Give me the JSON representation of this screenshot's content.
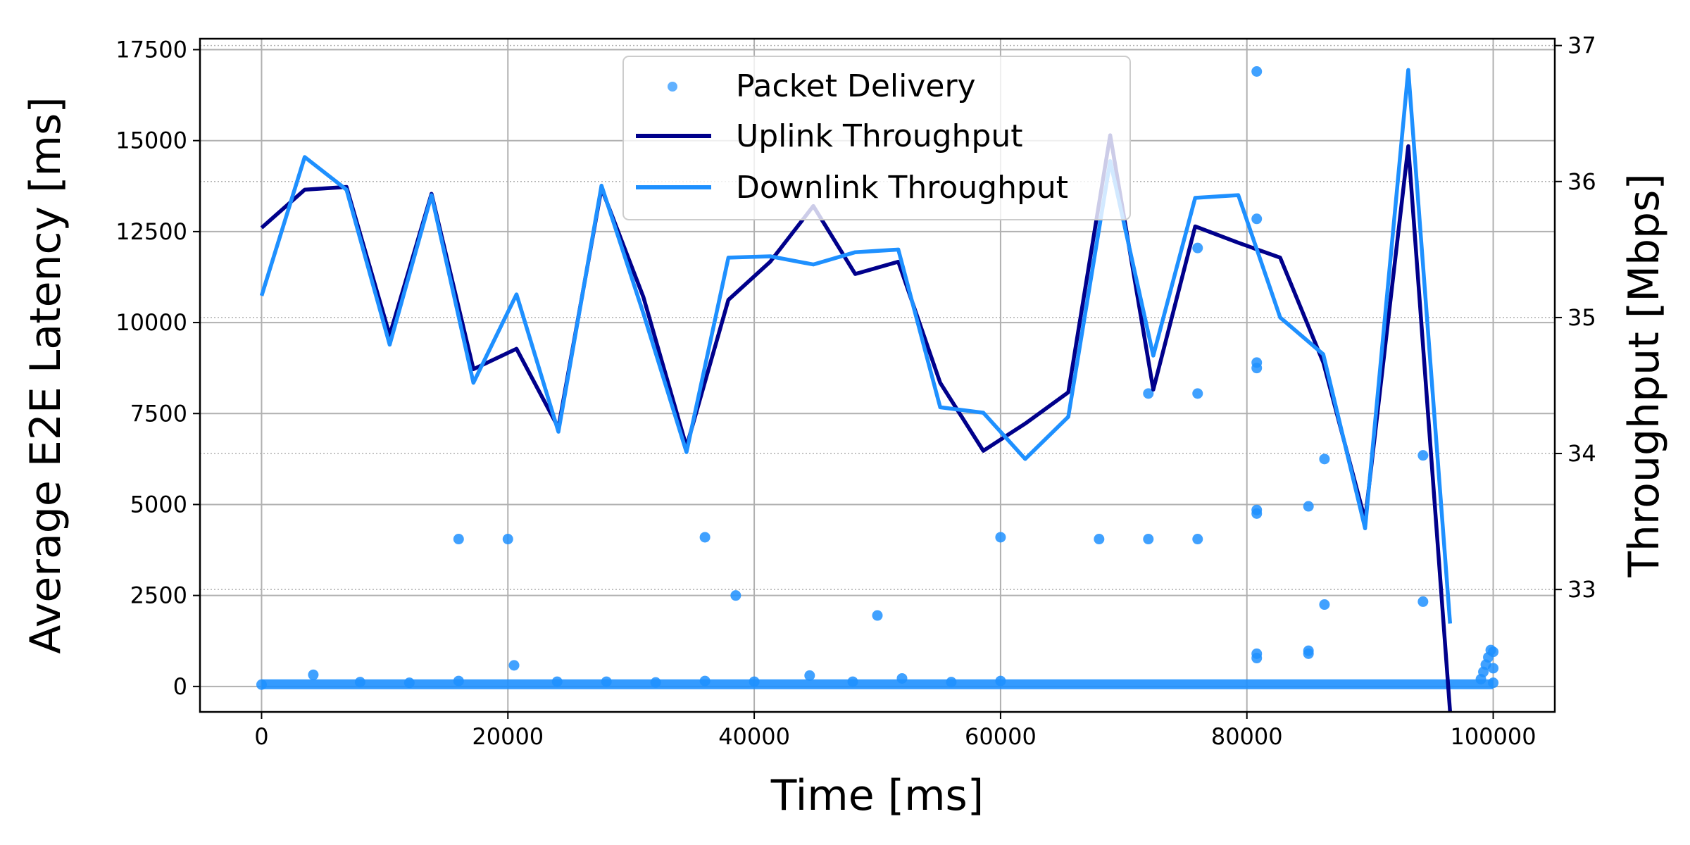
{
  "chart_data": {
    "type": "line",
    "title": "",
    "xlabel": "Time [ms]",
    "ylabel": "Average E2E Latency [ms]",
    "y2label": "Throughput [Mbps]",
    "xlim": [
      -5000,
      105000
    ],
    "ylim": [
      -700,
      17800
    ],
    "y2lim": [
      32.1,
      37.05
    ],
    "xticks": [
      0,
      20000,
      40000,
      60000,
      80000,
      100000
    ],
    "yticks": [
      0,
      2500,
      5000,
      7500,
      10000,
      12500,
      15000,
      17500
    ],
    "y2ticks": [
      33,
      34,
      35,
      36,
      37
    ],
    "grid": true,
    "legend_position": "top-center",
    "series": [
      {
        "name": "Packet Delivery",
        "kind": "scatter",
        "axis": "left",
        "color": "#1E90FF",
        "baseline": {
          "x_start": 0,
          "x_end": 100000,
          "y": 60
        },
        "points": [
          [
            0,
            50
          ],
          [
            4200,
            320
          ],
          [
            8000,
            120
          ],
          [
            12000,
            100
          ],
          [
            16000,
            4050
          ],
          [
            16000,
            150
          ],
          [
            20000,
            4050
          ],
          [
            20500,
            580
          ],
          [
            24000,
            130
          ],
          [
            28000,
            130
          ],
          [
            32000,
            110
          ],
          [
            36000,
            4100
          ],
          [
            36000,
            150
          ],
          [
            38500,
            2500
          ],
          [
            40000,
            130
          ],
          [
            44500,
            300
          ],
          [
            48000,
            130
          ],
          [
            50000,
            1950
          ],
          [
            52000,
            220
          ],
          [
            56000,
            120
          ],
          [
            60000,
            4100
          ],
          [
            60000,
            150
          ],
          [
            68000,
            4050
          ],
          [
            72000,
            8050
          ],
          [
            72000,
            4050
          ],
          [
            76000,
            12050
          ],
          [
            76000,
            8050
          ],
          [
            76000,
            4050
          ],
          [
            80800,
            16900
          ],
          [
            80800,
            12850
          ],
          [
            80800,
            8900
          ],
          [
            80800,
            8750
          ],
          [
            80800,
            4850
          ],
          [
            80800,
            4750
          ],
          [
            80800,
            900
          ],
          [
            80800,
            780
          ],
          [
            85000,
            4950
          ],
          [
            85000,
            980
          ],
          [
            85000,
            900
          ],
          [
            86300,
            6250
          ],
          [
            86300,
            2250
          ],
          [
            94300,
            6350
          ],
          [
            94300,
            2330
          ],
          [
            99000,
            200
          ],
          [
            99200,
            400
          ],
          [
            99400,
            600
          ],
          [
            99600,
            800
          ],
          [
            99800,
            1000
          ],
          [
            100000,
            950
          ],
          [
            100000,
            500
          ],
          [
            100000,
            100
          ]
        ]
      },
      {
        "name": "Uplink Throughput",
        "kind": "line",
        "axis": "right",
        "color": "#00008B",
        "x": [
          0,
          3500,
          6900,
          10400,
          13800,
          17200,
          20700,
          24100,
          27600,
          31000,
          34500,
          37900,
          41300,
          44800,
          48200,
          51700,
          55100,
          58600,
          62000,
          65500,
          68900,
          72400,
          75800,
          79300,
          82700,
          86200,
          89600,
          93100,
          96500
        ],
        "values": [
          35.66,
          35.94,
          35.96,
          34.87,
          35.91,
          34.62,
          34.77,
          34.19,
          35.95,
          35.15,
          34.05,
          35.13,
          35.41,
          35.82,
          35.32,
          35.41,
          34.52,
          34.02,
          34.22,
          34.45,
          36.34,
          34.47,
          35.67,
          35.55,
          35.44,
          34.67,
          33.51,
          36.26,
          32.1
        ]
      },
      {
        "name": "Downlink Throughput",
        "kind": "line",
        "axis": "right",
        "color": "#1E90FF",
        "x": [
          0,
          3500,
          6900,
          10400,
          13800,
          17200,
          20700,
          24100,
          27600,
          31000,
          34500,
          37900,
          41300,
          44800,
          48200,
          51700,
          55100,
          58600,
          62000,
          65500,
          68900,
          72400,
          75800,
          79300,
          82700,
          86200,
          89600,
          93100,
          96500
        ],
        "values": [
          35.16,
          36.18,
          35.94,
          34.8,
          35.9,
          34.52,
          35.17,
          34.16,
          35.97,
          35.03,
          34.01,
          35.44,
          35.45,
          35.39,
          35.48,
          35.5,
          34.34,
          34.3,
          33.96,
          34.27,
          36.15,
          34.72,
          35.88,
          35.9,
          35.0,
          34.73,
          33.45,
          36.82,
          32.75
        ]
      }
    ]
  }
}
